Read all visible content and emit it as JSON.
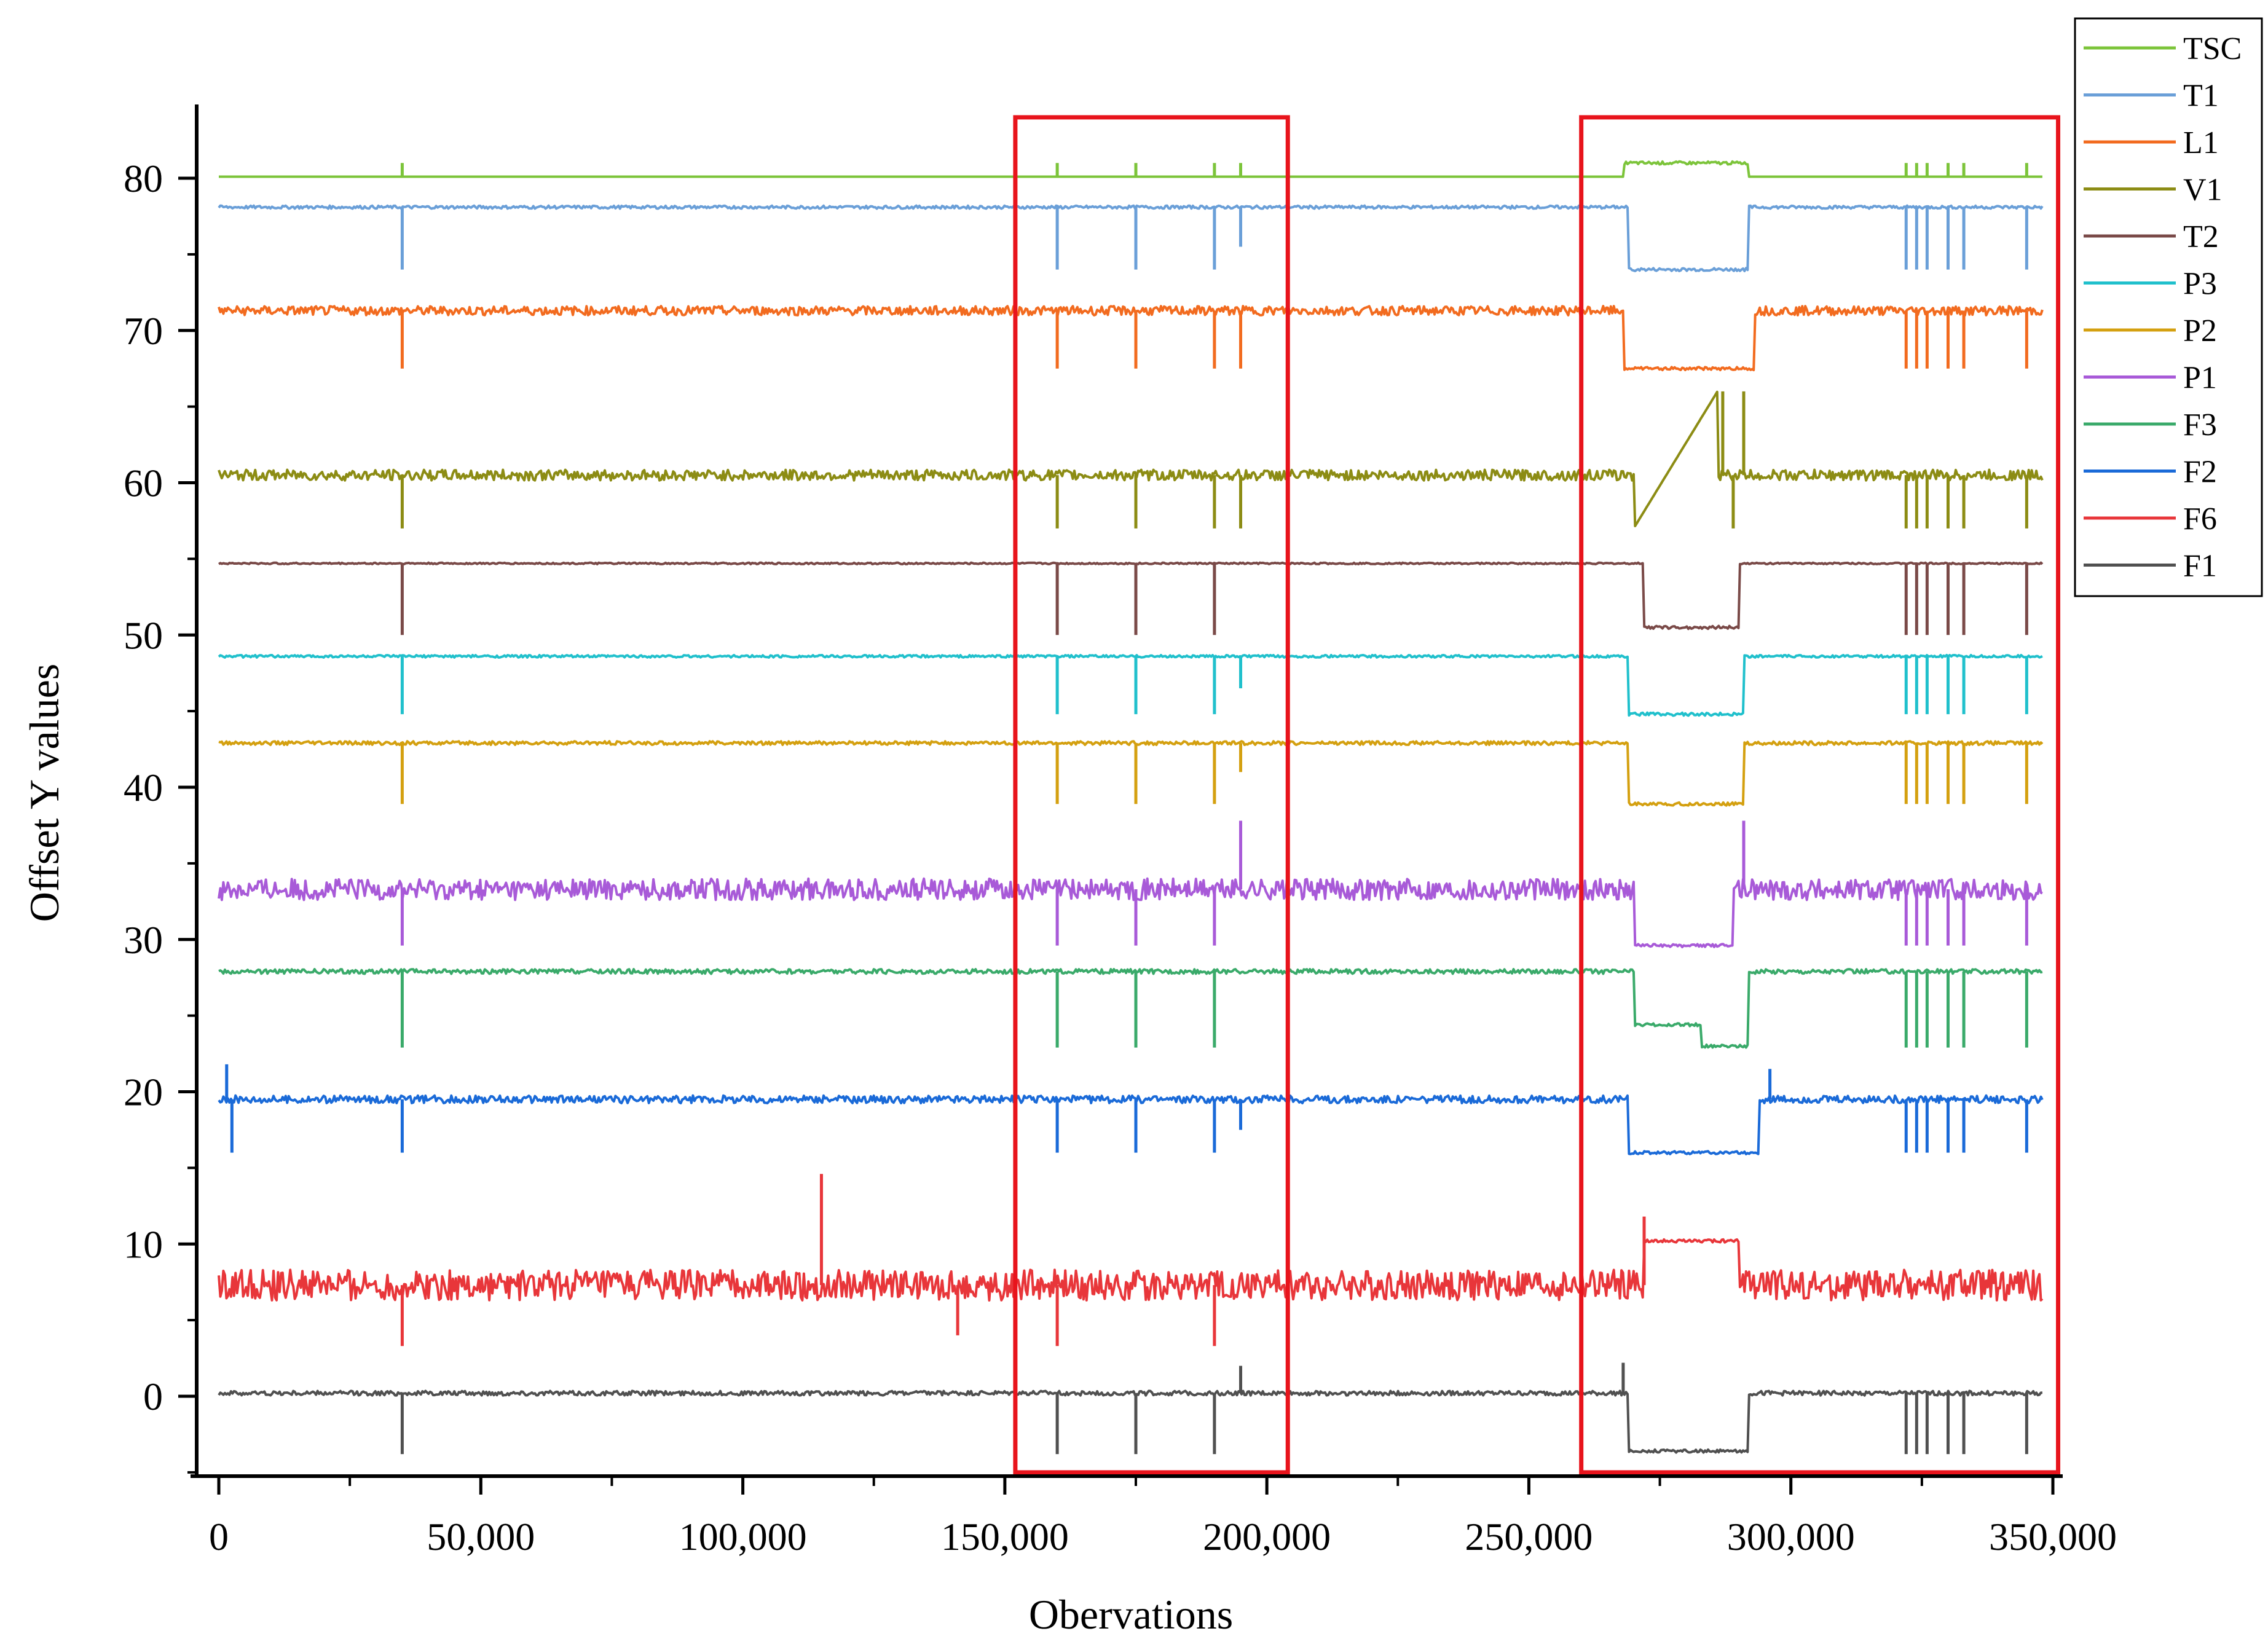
{
  "chart_data": {
    "type": "line",
    "title": "",
    "xlabel": "Obervations",
    "ylabel": "Offset Y values",
    "xlim": [
      -4000,
      350000
    ],
    "ylim": [
      -5,
      85
    ],
    "x_ticks": [
      0,
      50000,
      100000,
      150000,
      200000,
      250000,
      300000,
      350000
    ],
    "x_tick_labels": [
      "0",
      "50,000",
      "100,000",
      "150,000",
      "200,000",
      "250,000",
      "300,000",
      "350,000"
    ],
    "y_ticks": [
      0,
      10,
      20,
      30,
      40,
      50,
      60,
      70,
      80
    ],
    "y_tick_labels": [
      "0",
      "10",
      "20",
      "30",
      "40",
      "50",
      "60",
      "70",
      "80"
    ],
    "grid": false,
    "legend_position": "top-right outside",
    "x_range": [
      0,
      348000
    ],
    "highlight_regions": [
      {
        "x_start": 152000,
        "x_end": 204000,
        "y_start": -5,
        "y_end": 84,
        "color": "#e8141c"
      },
      {
        "x_start": 260000,
        "x_end": 351000,
        "y_start": -5,
        "y_end": 84,
        "color": "#e8141c"
      }
    ],
    "series": [
      {
        "name": "TSC",
        "color": "#7cc43a",
        "baseline": 80.1,
        "noise": 0.0,
        "spike_dir": 1,
        "spikes": [
          {
            "x": 35000,
            "y": 81.0
          },
          {
            "x": 160000,
            "y": 81.0
          },
          {
            "x": 175000,
            "y": 81.0
          },
          {
            "x": 190000,
            "y": 81.0
          },
          {
            "x": 195000,
            "y": 81.0
          },
          {
            "x": 322000,
            "y": 81.0
          },
          {
            "x": 324000,
            "y": 81.0
          },
          {
            "x": 326000,
            "y": 81.0
          },
          {
            "x": 330000,
            "y": 81.0
          },
          {
            "x": 333000,
            "y": 81.0
          },
          {
            "x": 345000,
            "y": 81.0
          }
        ],
        "segments": [
          {
            "x0": 268000,
            "x1": 292000,
            "y": 81.0
          }
        ]
      },
      {
        "name": "T1",
        "color": "#6a9fd8",
        "baseline": 78.1,
        "noise": 0.1,
        "spike_dir": -1,
        "spikes": [
          {
            "x": 35000,
            "y": 74.0
          },
          {
            "x": 160000,
            "y": 74.0
          },
          {
            "x": 175000,
            "y": 74.0
          },
          {
            "x": 190000,
            "y": 74.0
          },
          {
            "x": 195000,
            "y": 75.5
          },
          {
            "x": 322000,
            "y": 74.0
          },
          {
            "x": 324000,
            "y": 74.0
          },
          {
            "x": 326000,
            "y": 74.0
          },
          {
            "x": 330000,
            "y": 74.0
          },
          {
            "x": 333000,
            "y": 74.0
          },
          {
            "x": 345000,
            "y": 74.0
          }
        ],
        "segments": [
          {
            "x0": 269000,
            "x1": 292000,
            "y": 74.0
          }
        ]
      },
      {
        "name": "L1",
        "color": "#f26b1f",
        "baseline": 71.3,
        "noise": 0.3,
        "spike_dir": -1,
        "spikes": [
          {
            "x": 35000,
            "y": 67.5
          },
          {
            "x": 160000,
            "y": 67.5
          },
          {
            "x": 175000,
            "y": 67.5
          },
          {
            "x": 190000,
            "y": 67.5
          },
          {
            "x": 195000,
            "y": 67.5
          },
          {
            "x": 322000,
            "y": 67.5
          },
          {
            "x": 324000,
            "y": 67.5
          },
          {
            "x": 326000,
            "y": 67.5
          },
          {
            "x": 330000,
            "y": 67.5
          },
          {
            "x": 333000,
            "y": 67.5
          },
          {
            "x": 345000,
            "y": 67.5
          }
        ],
        "segments": [
          {
            "x0": 268000,
            "x1": 293000,
            "y": 67.5
          }
        ]
      },
      {
        "name": "V1",
        "color": "#8c8c14",
        "baseline": 60.5,
        "noise": 0.35,
        "spike_dir": -1,
        "spikes": [
          {
            "x": 35000,
            "y": 57.0
          },
          {
            "x": 160000,
            "y": 57.0
          },
          {
            "x": 175000,
            "y": 57.0
          },
          {
            "x": 190000,
            "y": 57.0
          },
          {
            "x": 195000,
            "y": 57.0
          },
          {
            "x": 287000,
            "y": 66.0
          },
          {
            "x": 289000,
            "y": 57.0
          },
          {
            "x": 291000,
            "y": 66.0
          },
          {
            "x": 322000,
            "y": 57.0
          },
          {
            "x": 324000,
            "y": 57.0
          },
          {
            "x": 326000,
            "y": 57.0
          },
          {
            "x": 330000,
            "y": 57.0
          },
          {
            "x": 333000,
            "y": 57.0
          },
          {
            "x": 345000,
            "y": 57.0
          }
        ],
        "ramp": {
          "x0": 270000,
          "y0": 57.0,
          "x1": 286000,
          "y1": 66.0
        }
      },
      {
        "name": "T2",
        "color": "#7a4a48",
        "baseline": 54.7,
        "noise": 0.05,
        "spike_dir": -1,
        "spikes": [
          {
            "x": 35000,
            "y": 50.0
          },
          {
            "x": 160000,
            "y": 50.0
          },
          {
            "x": 175000,
            "y": 50.0
          },
          {
            "x": 190000,
            "y": 50.0
          },
          {
            "x": 322000,
            "y": 50.0
          },
          {
            "x": 324000,
            "y": 50.0
          },
          {
            "x": 326000,
            "y": 50.0
          },
          {
            "x": 330000,
            "y": 50.0
          },
          {
            "x": 333000,
            "y": 50.0
          },
          {
            "x": 345000,
            "y": 50.0
          }
        ],
        "segments": [
          {
            "x0": 272000,
            "x1": 290000,
            "y": 50.5
          }
        ]
      },
      {
        "name": "P3",
        "color": "#20c0cc",
        "baseline": 48.6,
        "noise": 0.08,
        "spike_dir": -1,
        "spikes": [
          {
            "x": 35000,
            "y": 44.8
          },
          {
            "x": 160000,
            "y": 44.8
          },
          {
            "x": 175000,
            "y": 44.8
          },
          {
            "x": 190000,
            "y": 44.8
          },
          {
            "x": 195000,
            "y": 46.5
          },
          {
            "x": 322000,
            "y": 44.8
          },
          {
            "x": 324000,
            "y": 44.8
          },
          {
            "x": 326000,
            "y": 44.8
          },
          {
            "x": 330000,
            "y": 44.8
          },
          {
            "x": 333000,
            "y": 44.8
          },
          {
            "x": 345000,
            "y": 44.8
          }
        ],
        "segments": [
          {
            "x0": 269000,
            "x1": 291000,
            "y": 44.8
          }
        ]
      },
      {
        "name": "P2",
        "color": "#d4a010",
        "baseline": 42.9,
        "noise": 0.12,
        "spike_dir": -1,
        "spikes": [
          {
            "x": 35000,
            "y": 38.9
          },
          {
            "x": 160000,
            "y": 38.9
          },
          {
            "x": 175000,
            "y": 38.9
          },
          {
            "x": 190000,
            "y": 38.9
          },
          {
            "x": 195000,
            "y": 41.0
          },
          {
            "x": 322000,
            "y": 38.9
          },
          {
            "x": 324000,
            "y": 38.9
          },
          {
            "x": 326000,
            "y": 38.9
          },
          {
            "x": 330000,
            "y": 38.9
          },
          {
            "x": 333000,
            "y": 38.9
          },
          {
            "x": 345000,
            "y": 38.9
          }
        ],
        "segments": [
          {
            "x0": 269000,
            "x1": 291000,
            "y": 38.9
          }
        ]
      },
      {
        "name": "P1",
        "color": "#a85ad8",
        "baseline": 33.3,
        "noise": 0.7,
        "spike_dir": -1,
        "spikes": [
          {
            "x": 35000,
            "y": 29.6
          },
          {
            "x": 160000,
            "y": 29.6
          },
          {
            "x": 175000,
            "y": 29.6
          },
          {
            "x": 190000,
            "y": 29.6
          },
          {
            "x": 195000,
            "y": 37.8
          },
          {
            "x": 291000,
            "y": 37.8
          },
          {
            "x": 322000,
            "y": 29.6
          },
          {
            "x": 324000,
            "y": 29.6
          },
          {
            "x": 326000,
            "y": 29.6
          },
          {
            "x": 330000,
            "y": 29.6
          },
          {
            "x": 333000,
            "y": 29.6
          },
          {
            "x": 345000,
            "y": 29.6
          }
        ],
        "segments": [
          {
            "x0": 270000,
            "x1": 289000,
            "y": 29.6
          }
        ]
      },
      {
        "name": "F3",
        "color": "#3aaa6a",
        "baseline": 27.9,
        "noise": 0.15,
        "spike_dir": -1,
        "spikes": [
          {
            "x": 35000,
            "y": 22.9
          },
          {
            "x": 160000,
            "y": 22.9
          },
          {
            "x": 175000,
            "y": 22.9
          },
          {
            "x": 190000,
            "y": 22.9
          },
          {
            "x": 322000,
            "y": 22.9
          },
          {
            "x": 324000,
            "y": 22.9
          },
          {
            "x": 326000,
            "y": 22.9
          },
          {
            "x": 330000,
            "y": 22.9
          },
          {
            "x": 333000,
            "y": 22.9
          },
          {
            "x": 345000,
            "y": 22.9
          }
        ],
        "segments": [
          {
            "x0": 270000,
            "x1": 283000,
            "y": 24.4
          },
          {
            "x0": 283000,
            "x1": 292000,
            "y": 23.0
          }
        ]
      },
      {
        "name": "F2",
        "color": "#1a6ad8",
        "baseline": 19.5,
        "noise": 0.25,
        "spike_dir": -1,
        "spikes": [
          {
            "x": 1500,
            "y": 21.8
          },
          {
            "x": 2500,
            "y": 16.0
          },
          {
            "x": 35000,
            "y": 16.0
          },
          {
            "x": 160000,
            "y": 16.0
          },
          {
            "x": 175000,
            "y": 16.0
          },
          {
            "x": 190000,
            "y": 16.0
          },
          {
            "x": 195000,
            "y": 17.5
          },
          {
            "x": 296000,
            "y": 21.5
          },
          {
            "x": 322000,
            "y": 16.0
          },
          {
            "x": 324000,
            "y": 16.0
          },
          {
            "x": 326000,
            "y": 16.0
          },
          {
            "x": 330000,
            "y": 16.0
          },
          {
            "x": 333000,
            "y": 16.0
          },
          {
            "x": 345000,
            "y": 16.0
          }
        ],
        "segments": [
          {
            "x0": 269000,
            "x1": 294000,
            "y": 16.0
          }
        ]
      },
      {
        "name": "F6",
        "color": "#e8363a",
        "baseline": 7.3,
        "noise": 1.0,
        "spike_dir": -1,
        "spikes": [
          {
            "x": 115000,
            "y": 14.6
          },
          {
            "x": 35000,
            "y": 3.3
          },
          {
            "x": 141000,
            "y": 4.0
          },
          {
            "x": 160000,
            "y": 3.3
          },
          {
            "x": 190000,
            "y": 3.3
          },
          {
            "x": 272000,
            "y": 11.8
          }
        ],
        "segments": [
          {
            "x0": 272000,
            "x1": 290000,
            "y": 10.2
          }
        ]
      },
      {
        "name": "F1",
        "color": "#505050",
        "baseline": 0.2,
        "noise": 0.15,
        "spike_dir": -1,
        "spikes": [
          {
            "x": 35000,
            "y": -3.8
          },
          {
            "x": 160000,
            "y": -3.8
          },
          {
            "x": 175000,
            "y": -3.8
          },
          {
            "x": 190000,
            "y": -3.8
          },
          {
            "x": 195000,
            "y": 2.0
          },
          {
            "x": 268000,
            "y": 2.2
          },
          {
            "x": 322000,
            "y": -3.8
          },
          {
            "x": 324000,
            "y": -3.8
          },
          {
            "x": 326000,
            "y": -3.8
          },
          {
            "x": 330000,
            "y": -3.8
          },
          {
            "x": 333000,
            "y": -3.8
          },
          {
            "x": 345000,
            "y": -3.8
          }
        ],
        "segments": [
          {
            "x0": 269000,
            "x1": 292000,
            "y": -3.6
          }
        ]
      }
    ]
  }
}
